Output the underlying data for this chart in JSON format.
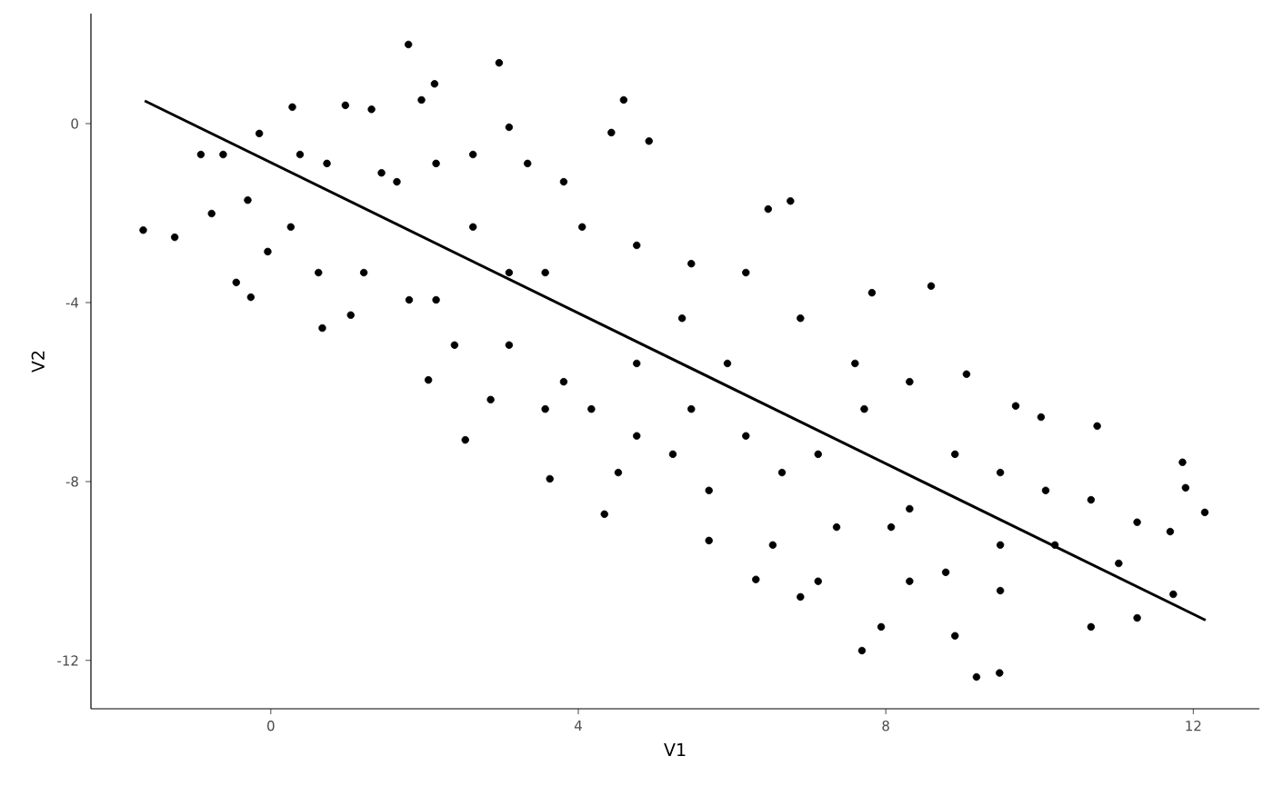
{
  "chart_data": {
    "type": "scatter",
    "xlabel": "V1",
    "ylabel": "V2",
    "xlim": [
      -2.34,
      12.86
    ],
    "ylim": [
      -13.08,
      2.46
    ],
    "xticks": [
      0,
      4,
      8,
      12
    ],
    "yticks": [
      -12,
      -8,
      -4,
      0
    ],
    "series": [
      {
        "marker": "circle",
        "color": "#000000",
        "x": [
          -1.66,
          -1.25,
          -0.91,
          -0.77,
          -0.62,
          -0.45,
          -0.26,
          -0.3,
          -0.15,
          0.28,
          -0.04,
          0.97,
          0.67,
          1.04,
          1.31,
          1.79,
          1.96,
          2.13,
          2.97,
          2.05,
          2.53,
          4.59,
          4.92,
          4.43,
          4.34,
          3.63,
          1.64,
          2.63,
          3.57,
          3.1,
          3.34,
          4.05,
          4.76,
          5.35,
          5.94,
          5.7,
          5.7,
          6.47,
          6.76,
          6.31,
          6.89,
          7.82,
          8.59,
          7.12,
          7.72,
          8.31,
          7.69,
          7.94,
          9.18,
          9.48,
          8.9,
          9.05,
          9.69,
          10.02,
          10.75,
          10.2,
          9.49,
          11.27,
          11.7,
          11.86,
          11.74,
          12.15,
          11.9,
          11.27,
          10.67,
          8.31,
          7.12,
          6.53,
          4.76,
          4.17,
          3.57,
          2.39,
          1.8,
          1.21,
          0.62,
          0.26,
          0.38,
          0.73,
          1.44,
          2.15,
          2.63,
          3.1,
          3.81,
          4.76,
          5.47,
          6.18,
          6.89,
          7.6,
          8.31,
          8.9,
          9.49,
          10.08,
          10.67,
          11.03,
          9.49,
          8.78,
          8.07,
          7.36,
          6.65,
          6.18,
          5.47,
          5.23,
          4.52,
          3.81,
          2.86,
          2.15,
          3.1
        ],
        "values": [
          -2.38,
          -2.54,
          -0.69,
          -2.01,
          -0.69,
          -3.55,
          -3.88,
          -1.71,
          -0.22,
          0.37,
          -2.86,
          0.41,
          -4.57,
          -4.28,
          0.32,
          1.77,
          0.53,
          0.89,
          1.36,
          -5.73,
          -7.07,
          0.53,
          -0.39,
          -0.2,
          -8.73,
          -7.94,
          -1.3,
          -2.31,
          -3.33,
          -4.95,
          -0.89,
          -2.31,
          -5.36,
          -4.35,
          -5.36,
          -8.2,
          -9.32,
          -1.91,
          -1.73,
          -10.19,
          -10.58,
          -3.78,
          -3.63,
          -7.39,
          -6.38,
          -8.61,
          -11.78,
          -11.25,
          -12.37,
          -12.28,
          -11.45,
          -5.6,
          -6.31,
          -6.56,
          -6.76,
          -9.42,
          -9.42,
          -8.91,
          -9.12,
          -7.57,
          -10.52,
          -8.69,
          -8.14,
          -11.05,
          -11.25,
          -10.23,
          -10.23,
          -9.42,
          -6.98,
          -6.38,
          -6.38,
          -4.95,
          -3.94,
          -3.33,
          -3.33,
          -2.31,
          -0.69,
          -0.89,
          -1.1,
          -0.89,
          -0.69,
          -0.08,
          -1.3,
          -2.72,
          -3.13,
          -3.33,
          -4.35,
          -5.36,
          -5.77,
          -7.39,
          -7.8,
          -8.2,
          -8.41,
          -9.83,
          -10.44,
          -10.03,
          -9.02,
          -9.02,
          -7.8,
          -6.98,
          -6.38,
          -7.39,
          -7.8,
          -5.77,
          -6.17,
          -3.94,
          -3.33
        ]
      },
      {
        "type": "line",
        "marker": "none",
        "color": "#000000",
        "x": [
          -1.64,
          12.16
        ],
        "values": [
          0.51,
          -11.1
        ]
      }
    ]
  }
}
